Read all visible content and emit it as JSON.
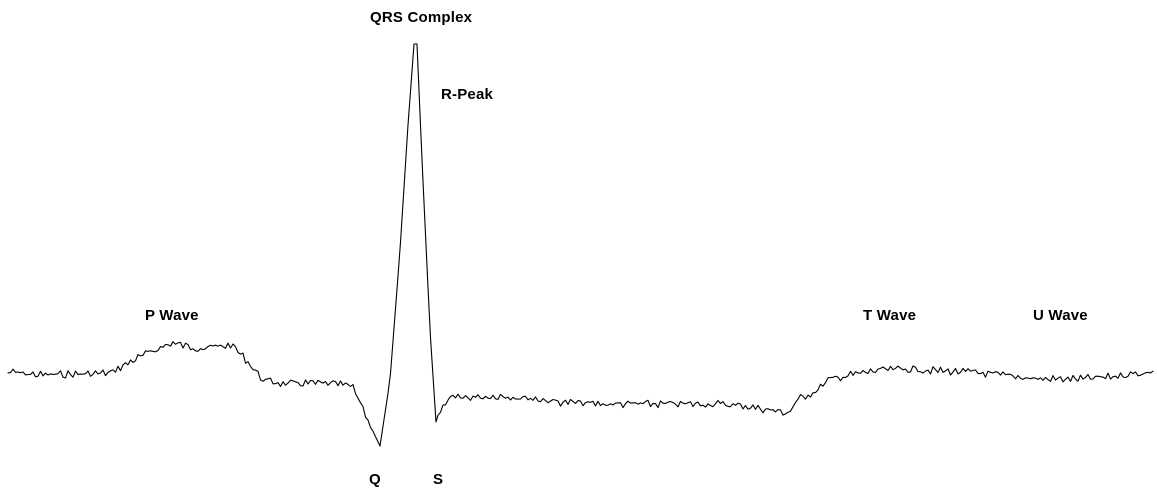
{
  "colors": {
    "background": "#ffffff",
    "trace": "#000000",
    "label": "#000000"
  },
  "labels": {
    "qrs_complex": "QRS Complex",
    "r_peak": "R-Peak",
    "p_wave": "P Wave",
    "t_wave": "T Wave",
    "u_wave": "U Wave",
    "q": "Q",
    "s": "S"
  }
}
